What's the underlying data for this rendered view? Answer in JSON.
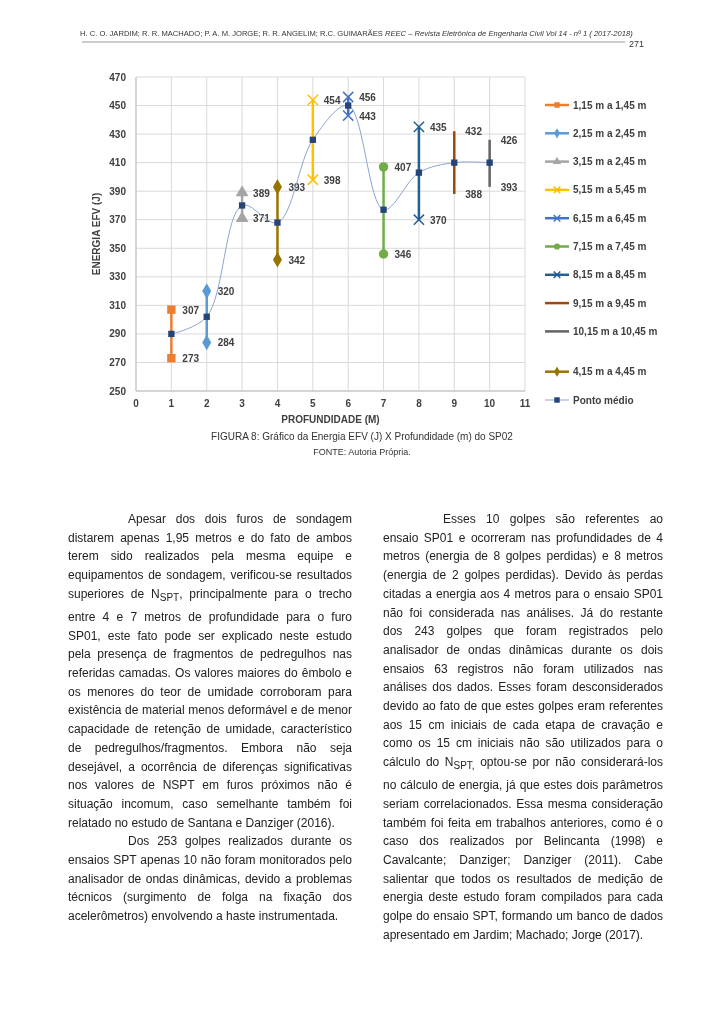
{
  "chart_data": {
    "type": "line",
    "title": "FIGURA 8: Gráfico da Energia EFV (J) X Profundidade (m) do SP02",
    "xlabel": "PROFUNDIDADE (M)",
    "ylabel": "ENERGIA EFV (J)",
    "xlim": [
      0,
      11
    ],
    "xticks": [
      0,
      1,
      2,
      3,
      4,
      5,
      6,
      7,
      8,
      9,
      10,
      11
    ],
    "ylim": [
      250,
      470
    ],
    "yticks": [
      250,
      270,
      290,
      310,
      330,
      350,
      370,
      390,
      410,
      430,
      450,
      470
    ],
    "grid": true,
    "legend": "right",
    "series": [
      {
        "name": "1,15 m a 1,45 m",
        "color": "#ed7d31",
        "marker": "square",
        "x": [
          1,
          1
        ],
        "values": [
          273,
          307
        ],
        "value_labels": [
          "273",
          "307"
        ]
      },
      {
        "name": "2,15 m a 2,45 m",
        "color": "#5b9bd5",
        "marker": "diamond",
        "x": [
          2,
          2
        ],
        "values": [
          284,
          320
        ],
        "value_labels": [
          "284",
          "320"
        ]
      },
      {
        "name": "3,15 m a 2,45 m",
        "color": "#a5a5a5",
        "marker": "triangle",
        "x": [
          3,
          3
        ],
        "values": [
          371,
          389
        ],
        "value_labels": [
          "371",
          "389"
        ]
      },
      {
        "name": "5,15 m a 5,45 m",
        "color": "#ffc000",
        "marker": "cross",
        "x": [
          5,
          5
        ],
        "values": [
          398,
          454
        ],
        "value_labels": [
          "398",
          "454"
        ]
      },
      {
        "name": "6,15 m a 6,45 m",
        "color": "#4472c4",
        "marker": "cross",
        "x": [
          6,
          6
        ],
        "values": [
          443,
          456
        ],
        "value_labels": [
          "443",
          "456"
        ]
      },
      {
        "name": "7,15 m a 7,45 m",
        "color": "#70ad47",
        "marker": "circle",
        "x": [
          7,
          7
        ],
        "values": [
          346,
          407
        ],
        "value_labels": [
          "346",
          "407"
        ]
      },
      {
        "name": "8,15 m a 8,45 m",
        "color": "#255e91",
        "marker": "cross",
        "x": [
          8,
          8
        ],
        "values": [
          370,
          435
        ],
        "value_labels": [
          "370",
          "435"
        ]
      },
      {
        "name": "9,15 m a 9,45 m",
        "color": "#9e480e",
        "marker": "none",
        "x": [
          9,
          9
        ],
        "values": [
          388,
          432
        ],
        "value_labels": [
          "388",
          "432"
        ]
      },
      {
        "name": "10,15 m a 10,45 m",
        "color": "#636363",
        "marker": "none",
        "x": [
          10,
          10
        ],
        "values": [
          393,
          426
        ],
        "value_labels": [
          "393",
          "426"
        ]
      },
      {
        "name": "4,15 m a 4,45 m",
        "color": "#997300",
        "marker": "diamond",
        "x": [
          4,
          4
        ],
        "values": [
          342,
          393
        ],
        "value_labels": [
          "342",
          "393"
        ]
      },
      {
        "name": "Ponto médio",
        "color": "#264478",
        "marker": "square",
        "x": [
          1,
          2,
          3,
          4,
          5,
          6,
          7,
          8,
          9,
          10
        ],
        "values": [
          290,
          302,
          380,
          368,
          426,
          450,
          377,
          403,
          410,
          410
        ]
      }
    ],
    "annotations": [
      "H. C. O. JARDIM; R. R. MACHADO; P. A. M.  JORGE; R. R. ANGELIM; R.C. GUIMARÃES",
      "REEC – Revista Eletrônica de Engenharia Civil  Vol 14 -  nº 1  ( 2017-2018)",
      "271",
      "FONTE: Autoria Própria.",
      "Apesar dos dois furos de sondagem distarem apenas 1,95 metros e do fato de ambos terem sido realizados pela mesma equipe e equipamentos de sondagem, verificou-se resultados superiores de N$_{SPT}$, principalmente para o trecho entre 4 e 7 metros de profundidade para o furo SP01, este fato pode ser explicado neste estudo pela presença de fragmentos de pedregulhos nas referidas camadas. Os valores maiores do êmbolo e os menores do teor de umidade corroboram para existência de material menos deformável e de menor capacidade de retenção de umidade, característico de pedregulhos/fragmentos. Embora não seja desejável, a ocorrência de diferenças significativas nos valores de NSPT em furos próximos não é situação incomum, caso semelhante também foi relatado no estudo de Santana e Danziger (2016).",
      "Dos 253 golpes realizados durante os ensaios SPT apenas 10 não foram monitorados pelo analisador de ondas dinâmicas, devido a problemas técnicos (surgimento de folga na fixação dos acelerômetros) envolvendo a haste instrumentada.",
      "Esses 10 golpes são referentes ao ensaio SP01 e ocorreram nas profundidades de 4 metros (energia de 8 golpes perdidas) e 8 metros (energia de 2 golpes perdidas). Devido às perdas citadas a energia aos 4 metros para o ensaio SP01 não foi considerada nas análises. Já do restante dos 243 golpes que foram registrados pelo analisador de ondas dinâmicas durante os dois ensaios 63 registros não foram utilizados nas análises dos dados. Esses foram desconsiderados devido ao fato de que estes golpes eram referentes aos 15 cm iniciais de cada etapa de cravação e como os 15 cm iniciais não são utilizados para o cálculo do N$_{SPT,}$ optou-se por não considerará-los no cálculo de energia, já que estes dois parâmetros seriam correlacionados. Essa mesma consideração também foi feita em trabalhos anteriores, como é o caso dos realizados por Belincanta (1998) e Cavalcante; Danziger; Danziger (2011). Cabe salientar que todos os resultados de medição de energia deste estudo foram compilados para cada golpe do ensaio SPT, formando um banco de dados apresentado em Jardim; Machado; Jorge (2017)."
    ]
  }
}
